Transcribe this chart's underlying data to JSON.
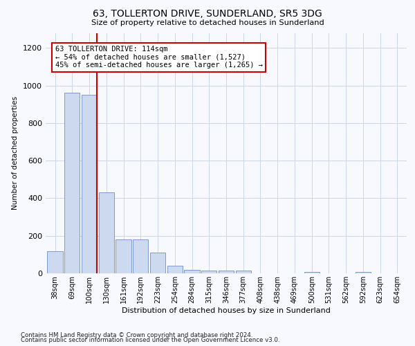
{
  "title": "63, TOLLERTON DRIVE, SUNDERLAND, SR5 3DG",
  "subtitle": "Size of property relative to detached houses in Sunderland",
  "xlabel": "Distribution of detached houses by size in Sunderland",
  "ylabel": "Number of detached properties",
  "footnote1": "Contains HM Land Registry data © Crown copyright and database right 2024.",
  "footnote2": "Contains public sector information licensed under the Open Government Licence v3.0.",
  "categories": [
    "38sqm",
    "69sqm",
    "100sqm",
    "130sqm",
    "161sqm",
    "192sqm",
    "223sqm",
    "254sqm",
    "284sqm",
    "315sqm",
    "346sqm",
    "377sqm",
    "408sqm",
    "438sqm",
    "469sqm",
    "500sqm",
    "531sqm",
    "562sqm",
    "592sqm",
    "623sqm",
    "654sqm"
  ],
  "values": [
    118,
    960,
    952,
    430,
    182,
    182,
    112,
    42,
    20,
    14,
    14,
    15,
    0,
    0,
    0,
    8,
    0,
    0,
    8,
    0,
    0
  ],
  "bar_color": "#ccd9ee",
  "bar_edge_color": "#6b8fc7",
  "highlight_bin": 2,
  "highlight_color": "#cc0000",
  "annotation_text": "63 TOLLERTON DRIVE: 114sqm\n← 54% of detached houses are smaller (1,527)\n45% of semi-detached houses are larger (1,265) →",
  "annotation_box_color": "#ffffff",
  "annotation_box_edge": "#cc0000",
  "ylim": [
    0,
    1280
  ],
  "yticks": [
    0,
    200,
    400,
    600,
    800,
    1000,
    1200
  ],
  "bg_color": "#f8f8ff",
  "grid_color": "#ccd5e8"
}
